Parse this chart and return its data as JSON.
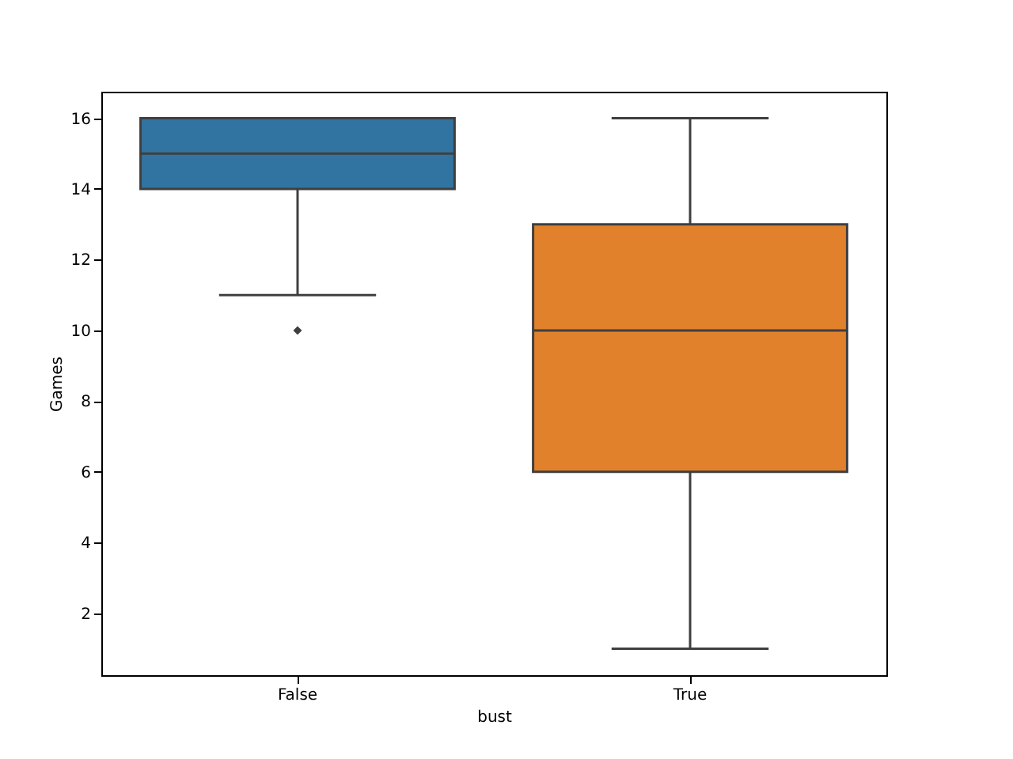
{
  "chart_data": {
    "type": "box",
    "xlabel": "bust",
    "ylabel": "Games",
    "categories": [
      "False",
      "True"
    ],
    "colors": [
      "#3274a1",
      "#e1812c"
    ],
    "boxes": [
      {
        "low": 11,
        "q1": 14,
        "median": 15,
        "q3": 16,
        "high": 16,
        "outliers": [
          10
        ]
      },
      {
        "low": 1,
        "q1": 6,
        "median": 10,
        "q3": 13,
        "high": 16
      }
    ],
    "ylim": [
      0.25,
      16.75
    ],
    "yticks": [
      2,
      4,
      6,
      8,
      10,
      12,
      14,
      16
    ]
  }
}
